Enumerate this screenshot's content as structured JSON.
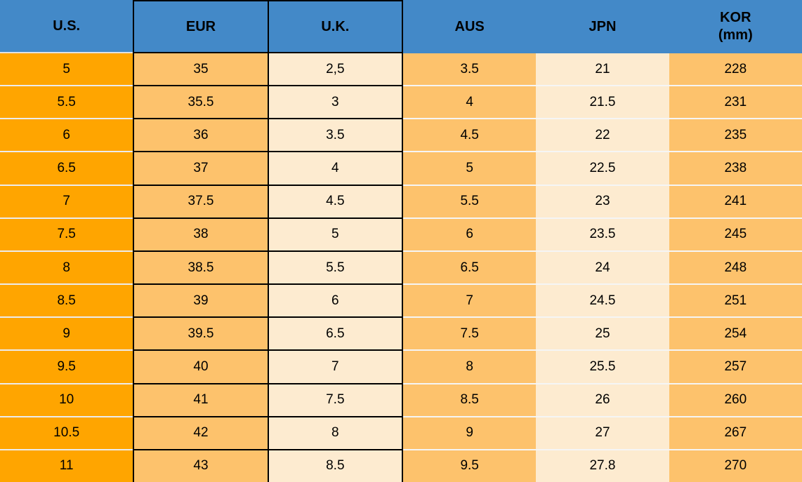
{
  "table": {
    "headers": {
      "us": "U.S.",
      "eur": "EUR",
      "uk": "U.K.",
      "aus": "AUS",
      "jpn": "JPN",
      "kor": "KOR",
      "kor_unit": "(mm)"
    }
  },
  "colors": {
    "header_bg": "#4389C8",
    "us_column_bg": "#FFA500",
    "medium_orange_bg": "#FDC26C",
    "cream_bg": "#FDEBD0",
    "black_border": "#000000",
    "row_separator": "#F5F5F5",
    "text": "#000000"
  },
  "chart_data": {
    "type": "table",
    "columns": [
      "U.S.",
      "EUR",
      "U.K.",
      "AUS",
      "JPN",
      "KOR (mm)"
    ],
    "rows": [
      [
        "5",
        "35",
        "2,5",
        "3.5",
        "21",
        "228"
      ],
      [
        "5.5",
        "35.5",
        "3",
        "4",
        "21.5",
        "231"
      ],
      [
        "6",
        "36",
        "3.5",
        "4.5",
        "22",
        "235"
      ],
      [
        "6.5",
        "37",
        "4",
        "5",
        "22.5",
        "238"
      ],
      [
        "7",
        "37.5",
        "4.5",
        "5.5",
        "23",
        "241"
      ],
      [
        "7.5",
        "38",
        "5",
        "6",
        "23.5",
        "245"
      ],
      [
        "8",
        "38.5",
        "5.5",
        "6.5",
        "24",
        "248"
      ],
      [
        "8.5",
        "39",
        "6",
        "7",
        "24.5",
        "251"
      ],
      [
        "9",
        "39.5",
        "6.5",
        "7.5",
        "25",
        "254"
      ],
      [
        "9.5",
        "40",
        "7",
        "8",
        "25.5",
        "257"
      ],
      [
        "10",
        "41",
        "7.5",
        "8.5",
        "26",
        "260"
      ],
      [
        "10.5",
        "42",
        "8",
        "9",
        "27",
        "267"
      ],
      [
        "11",
        "43",
        "8.5",
        "9.5",
        "27.8",
        "270"
      ]
    ]
  }
}
